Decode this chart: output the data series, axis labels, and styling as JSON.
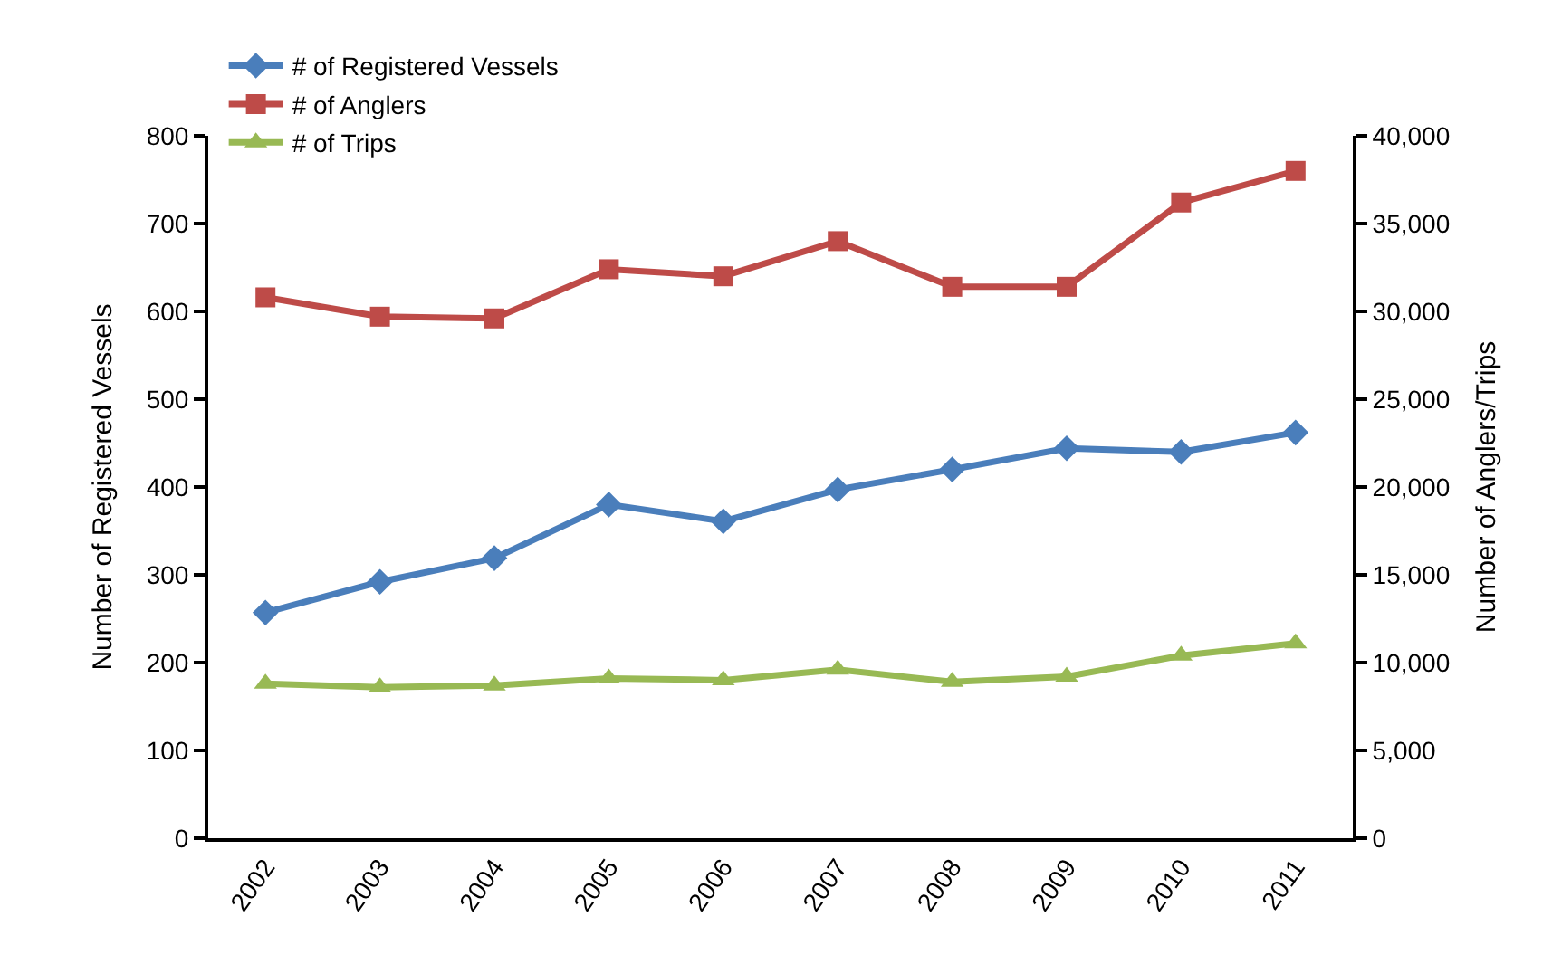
{
  "chart_data": {
    "type": "line",
    "categories": [
      "2002",
      "2003",
      "2004",
      "2005",
      "2006",
      "2007",
      "2008",
      "2009",
      "2010",
      "2011"
    ],
    "ylabel": "Number of Registered Vessels",
    "y2label": "Number of Anglers/Trips",
    "ylim": [
      0,
      800
    ],
    "yticks": [
      0,
      100,
      200,
      300,
      400,
      500,
      600,
      700,
      800
    ],
    "y2lim": [
      0,
      40000
    ],
    "y2ticks": [
      {
        "value": 0,
        "label": "0"
      },
      {
        "value": 5000,
        "label": "5,000"
      },
      {
        "value": 10000,
        "label": "10,000"
      },
      {
        "value": 15000,
        "label": "15,000"
      },
      {
        "value": 20000,
        "label": "20,000"
      },
      {
        "value": 25000,
        "label": "25,000"
      },
      {
        "value": 30000,
        "label": "30,000"
      },
      {
        "value": 35000,
        "label": "35,000"
      },
      {
        "value": 40000,
        "label": "40,000"
      }
    ],
    "legend": "top left",
    "series": [
      {
        "name": "# of Registered Vessels",
        "color": "#4a7ebb",
        "marker": "diamond",
        "values": [
          257,
          292,
          319,
          380,
          361,
          397,
          420,
          444,
          440,
          462
        ]
      },
      {
        "name": "# of Anglers",
        "color": "#be4b48",
        "marker": "square",
        "axis": "y2",
        "values": [
          30800,
          29700,
          29600,
          32400,
          32000,
          34000,
          31400,
          31400,
          36200,
          38000
        ]
      },
      {
        "name": "# of Trips",
        "color": "#98b954",
        "marker": "triangle",
        "axis": "y2",
        "values": [
          8800,
          8600,
          8700,
          9100,
          9000,
          9600,
          8900,
          9200,
          10400,
          11100
        ]
      }
    ]
  }
}
